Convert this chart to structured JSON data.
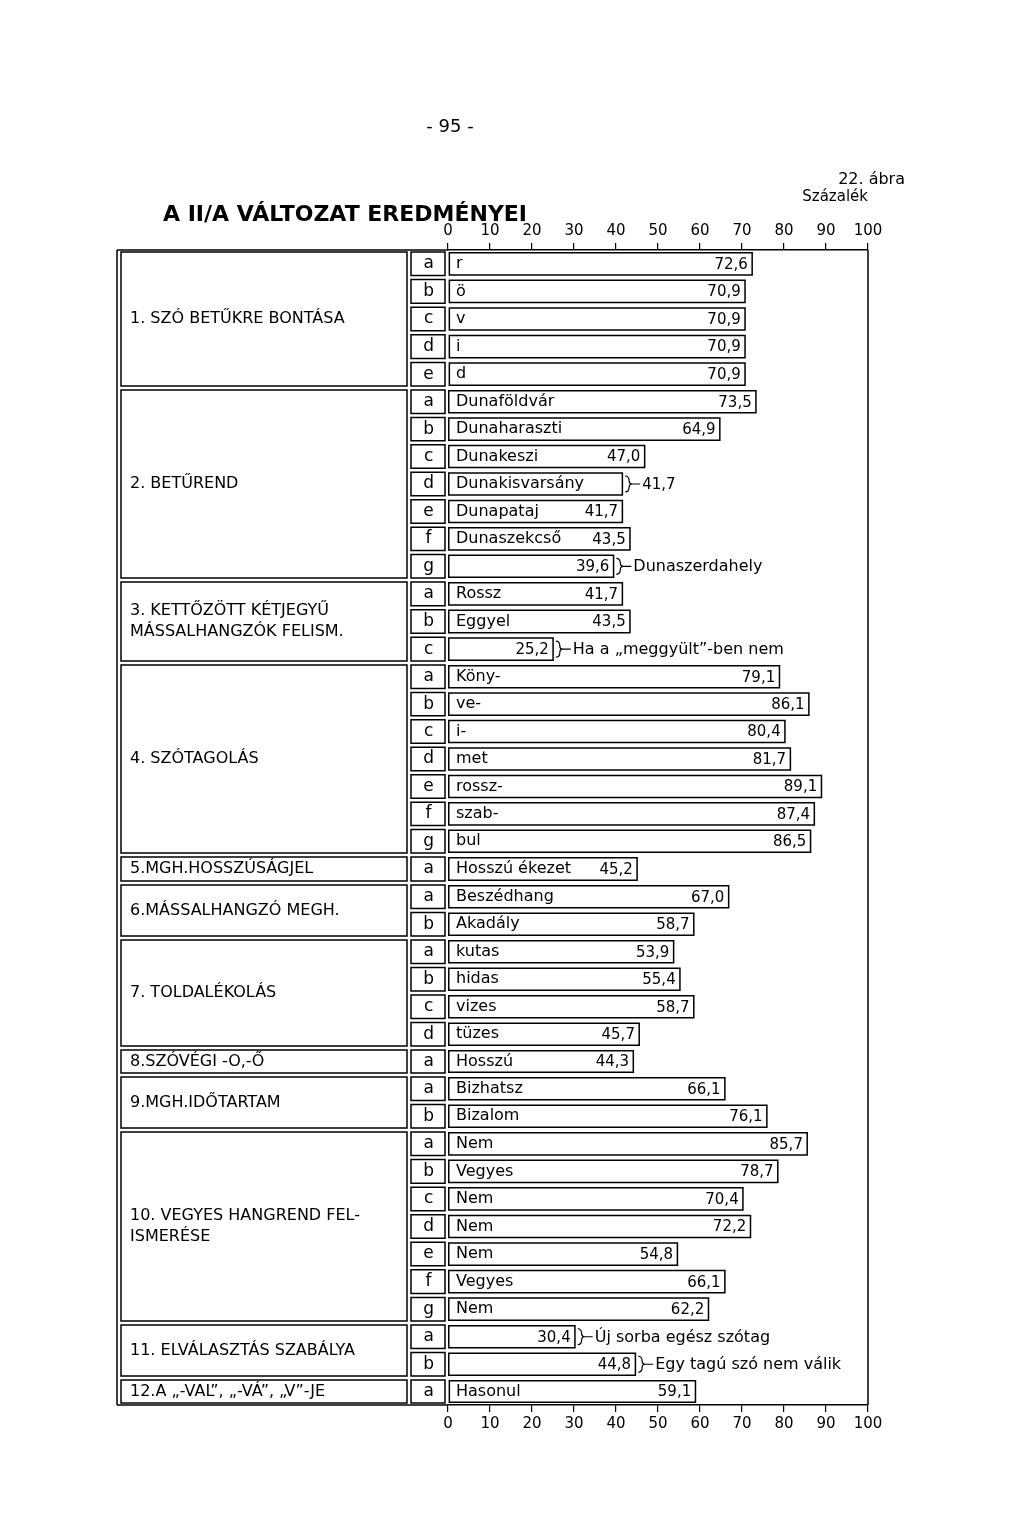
{
  "chart_data": [
    {
      "type": "bar",
      "orientation": "horizontal",
      "title": "A II/A VÁLTOZAT EREDMÉNYEI",
      "xlabel": "Százalék",
      "ylabel": "1. SZÓ BETŰKRE BONTÁSA",
      "categories": [
        "a",
        "b",
        "c",
        "d",
        "e"
      ],
      "y2_categories": [
        "r",
        "ö",
        "v",
        "i",
        "d"
      ],
      "values": [
        72.6,
        70.9,
        70.9,
        70.9,
        70.9
      ],
      "value_labels": [
        "72,6",
        "70,9",
        "70,9",
        "70,9",
        "70,9"
      ],
      "color": "#ffffff",
      "xlim": [
        0,
        100
      ],
      "xticks": [
        0,
        10,
        20,
        30,
        40,
        50,
        60,
        70,
        80,
        90,
        100
      ],
      "annotations": [
        "- 95 -",
        "22. ábra"
      ]
    },
    {
      "type": "bar",
      "orientation": "horizontal",
      "ylabel": "2. BETŰREND",
      "categories": [
        "a",
        "b",
        "c",
        "d",
        "e",
        "f",
        "g"
      ],
      "y2_categories": [
        "Dunaföldvár",
        "Dunaharaszti",
        "Dunakeszi",
        "Dunakisvarsány",
        "Dunapataj",
        "Dunaszekcső",
        null
      ],
      "values": [
        73.5,
        64.9,
        47.0,
        41.7,
        41.7,
        43.5,
        39.6
      ],
      "value_labels": [
        "73,5",
        "64,9",
        "47,0",
        "41,7",
        "41,7",
        "43,5",
        "39,6"
      ],
      "color": "#ffffff",
      "xlim": [
        0,
        100
      ],
      "tick_labels": "y",
      "annotations": [
        {
          "text": "Dunaszerdahely",
          "x": 39.6,
          "y": "g"
        }
      ]
    },
    {
      "type": "bar",
      "orientation": "horizontal",
      "ylabel": "3. KETTŐZÖTT KÉTJEGYŰ\nMÁSSALHANGZÓK FELISM.",
      "categories": [
        "a",
        "b",
        "c"
      ],
      "y2_categories": [
        "Rossz",
        "Eggyel",
        null
      ],
      "values": [
        41.7,
        43.5,
        25.2
      ],
      "value_labels": [
        "41,7",
        "43,5",
        "25,2"
      ],
      "color": "#ffffff",
      "xlim": [
        0,
        100
      ],
      "tick_labels": "y",
      "annotations": [
        {
          "text": "Ha a „meggyült”-ben nem",
          "x": 25.2,
          "y": "c"
        }
      ]
    },
    {
      "type": "bar",
      "orientation": "horizontal",
      "ylabel": "4. SZÓTAGOLÁS",
      "categories": [
        "a",
        "b",
        "c",
        "d",
        "e",
        "f",
        "g"
      ],
      "y2_categories": [
        "Köny-",
        "ve-",
        "i-",
        "met",
        "rossz-",
        "szab-",
        "bul"
      ],
      "values": [
        79.1,
        86.1,
        80.4,
        81.7,
        89.1,
        87.4,
        86.5
      ],
      "value_labels": [
        "79,1",
        "86,1",
        "80,4",
        "81,7",
        "89,1",
        "87,4",
        "86,5"
      ],
      "color": "#ffffff",
      "xlim": [
        0,
        100
      ],
      "tick_labels": "y"
    },
    {
      "type": "bar",
      "orientation": "horizontal",
      "ylabel": "5.MGH.HOSSZÚSÁGJEL",
      "categories": [
        "a"
      ],
      "y2_categories": [
        "Hosszú ékezet"
      ],
      "values": [
        45.2
      ],
      "value_labels": [
        "45,2"
      ],
      "color": "#ffffff",
      "xlim": [
        0,
        100
      ],
      "tick_labels": "y"
    },
    {
      "type": "bar",
      "orientation": "horizontal",
      "ylabel": "6.MÁSSALHANGZÓ MEGH.",
      "categories": [
        "a",
        "b"
      ],
      "y2_categories": [
        "Beszédhang",
        "Akadály"
      ],
      "values": [
        67.0,
        58.7
      ],
      "value_labels": [
        "67,0",
        "58,7"
      ],
      "color": "#ffffff",
      "xlim": [
        0,
        100
      ],
      "tick_labels": "y"
    },
    {
      "type": "bar",
      "orientation": "horizontal",
      "ylabel": "7. TOLDALÉKOLÁS",
      "categories": [
        "a",
        "b",
        "c",
        "d"
      ],
      "y2_categories": [
        "kutas",
        "hidas",
        "vizes",
        "tüzes"
      ],
      "values": [
        53.9,
        55.4,
        58.7,
        45.7
      ],
      "value_labels": [
        "53,9",
        "55,4",
        "58,7",
        "45,7"
      ],
      "color": "#ffffff",
      "xlim": [
        0,
        100
      ],
      "tick_labels": "y"
    },
    {
      "type": "bar",
      "orientation": "horizontal",
      "ylabel": "8.SZÓVÉGI -O,-Ő",
      "categories": [
        "a"
      ],
      "y2_categories": [
        "Hosszú"
      ],
      "values": [
        44.3
      ],
      "value_labels": [
        "44,3"
      ],
      "color": "#ffffff",
      "xlim": [
        0,
        100
      ],
      "tick_labels": "y"
    },
    {
      "type": "bar",
      "orientation": "horizontal",
      "ylabel": "9.MGH.IDŐTARTAM",
      "categories": [
        "a",
        "b"
      ],
      "y2_categories": [
        "Bizhatsz",
        "Bizalom"
      ],
      "values": [
        66.1,
        76.1
      ],
      "value_labels": [
        "66,1",
        "76,1"
      ],
      "color": "#ffffff",
      "xlim": [
        0,
        100
      ],
      "tick_labels": "y"
    },
    {
      "type": "bar",
      "orientation": "horizontal",
      "ylabel": "10. VEGYES HANGREND FEL-\nISMERÉSE",
      "categories": [
        "a",
        "b",
        "c",
        "d",
        "e",
        "f",
        "g"
      ],
      "y2_categories": [
        "Nem",
        "Vegyes",
        "Nem",
        "Nem",
        "Nem",
        "Vegyes",
        "Nem"
      ],
      "values": [
        85.7,
        78.7,
        70.4,
        72.2,
        54.8,
        66.1,
        62.2
      ],
      "value_labels": [
        "85,7",
        "78,7",
        "70,4",
        "72,2",
        "54,8",
        "66,1",
        "62,2"
      ],
      "color": "#ffffff",
      "xlim": [
        0,
        100
      ],
      "tick_labels": "y"
    },
    {
      "type": "bar",
      "orientation": "horizontal",
      "ylabel": "11. ELVÁLASZTÁS SZABÁLYA",
      "categories": [
        "a",
        "b"
      ],
      "values": [
        30.4,
        44.8
      ],
      "value_labels": [
        "30,4",
        "44,8"
      ],
      "color": "#ffffff",
      "xlim": [
        0,
        100
      ],
      "tick_labels": "y",
      "annotations": [
        {
          "text": "Új sorba egész szótag",
          "x": 30.4,
          "y": "a"
        },
        {
          "text": "Egy tagú szó nem válik",
          "x": 44.8,
          "y": "b"
        }
      ]
    },
    {
      "type": "bar",
      "orientation": "horizontal",
      "ylabel": "12.A „-VAL”, „-VÁ”, „V”-JE",
      "categories": [
        "a"
      ],
      "y2_categories": [
        "Hasonul"
      ],
      "values": [
        59.1
      ],
      "value_labels": [
        "59,1"
      ],
      "color": "#ffffff",
      "xlim": [
        0,
        100
      ],
      "xticks": [
        0,
        10,
        20,
        30,
        40,
        50,
        60,
        70,
        80,
        90,
        100
      ]
    }
  ]
}
